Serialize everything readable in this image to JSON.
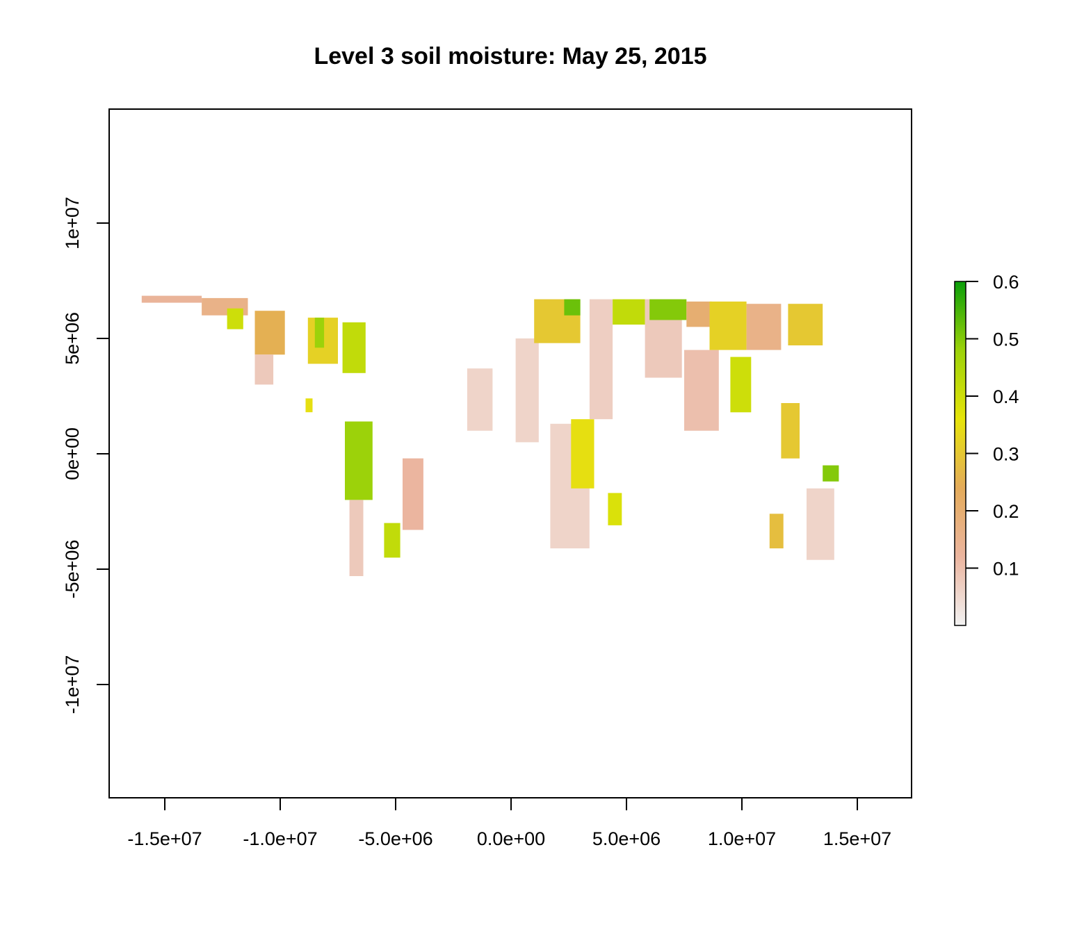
{
  "chart_data": {
    "type": "heatmap",
    "title": "Level 3 soil moisture: May 25, 2015",
    "xlabel": "",
    "ylabel": "",
    "xlim": [
      -17367530,
      17367530
    ],
    "ylim": [
      -14900000,
      14900000
    ],
    "x_ticks": [
      -15000000,
      -10000000,
      -5000000,
      0,
      5000000,
      10000000,
      15000000
    ],
    "x_tick_labels": [
      "-1.5e+07",
      "-1.0e+07",
      "-5.0e+06",
      "0.0e+00",
      "5.0e+06",
      "1.0e+07",
      "1.5e+07"
    ],
    "y_ticks": [
      10000000,
      5000000,
      0,
      -5000000,
      -10000000
    ],
    "y_tick_labels": [
      "1e+07",
      "5e+06",
      "0e+00",
      "-5e+06",
      "-1e+07"
    ],
    "grid": false,
    "legend": {
      "placement": "right",
      "range": [
        0.0,
        0.6
      ],
      "ticks": [
        0.1,
        0.2,
        0.3,
        0.4,
        0.5,
        0.6
      ],
      "tick_labels": [
        "0.1",
        "0.2",
        "0.3",
        "0.4",
        "0.5",
        "0.6"
      ],
      "colors": [
        "#f2f2f2",
        "#ebb59f",
        "#e4ab5a",
        "#e6e40a",
        "#9cd20a",
        "#0a9e0a"
      ]
    },
    "swaths": [
      {
        "x": [
          -16000000,
          -13400000
        ],
        "y": [
          6550000,
          6850000
        ],
        "v": 0.13
      },
      {
        "x": [
          -13400000,
          -11400000
        ],
        "y": [
          6000000,
          6750000
        ],
        "v": 0.16
      },
      {
        "x": [
          -12300000,
          -11600000
        ],
        "y": [
          5400000,
          6300000
        ],
        "v": 0.4
      },
      {
        "x": [
          -11100000,
          -9800000
        ],
        "y": [
          4300000,
          6200000
        ],
        "v": 0.25
      },
      {
        "x": [
          -11100000,
          -10300000
        ],
        "y": [
          3000000,
          4300000
        ],
        "v": 0.08
      },
      {
        "x": [
          -8800000,
          -7500000
        ],
        "y": [
          3900000,
          5900000
        ],
        "v": 0.32
      },
      {
        "x": [
          -8500000,
          -8100000
        ],
        "y": [
          4600000,
          5900000
        ],
        "v": 0.48
      },
      {
        "x": [
          -7300000,
          -6300000
        ],
        "y": [
          3500000,
          5700000
        ],
        "v": 0.42
      },
      {
        "x": [
          -8900000,
          -8600000
        ],
        "y": [
          1800000,
          2400000
        ],
        "v": 0.35
      },
      {
        "x": [
          -7200000,
          -6000000
        ],
        "y": [
          -2000000,
          1400000
        ],
        "v": 0.48
      },
      {
        "x": [
          -7000000,
          -6400000
        ],
        "y": [
          -5300000,
          -2000000
        ],
        "v": 0.08
      },
      {
        "x": [
          -4700000,
          -3800000
        ],
        "y": [
          -3300000,
          -200000
        ],
        "v": 0.12
      },
      {
        "x": [
          -5500000,
          -4800000
        ],
        "y": [
          -4500000,
          -3000000
        ],
        "v": 0.42
      },
      {
        "x": [
          -1900000,
          -800000
        ],
        "y": [
          1000000,
          3700000
        ],
        "v": 0.06
      },
      {
        "x": [
          200000,
          1200000
        ],
        "y": [
          500000,
          5000000
        ],
        "v": 0.06
      },
      {
        "x": [
          1000000,
          3000000
        ],
        "y": [
          4800000,
          6700000
        ],
        "v": 0.3
      },
      {
        "x": [
          2300000,
          3000000
        ],
        "y": [
          6000000,
          6700000
        ],
        "v": 0.52
      },
      {
        "x": [
          1700000,
          3400000
        ],
        "y": [
          -4100000,
          1300000
        ],
        "v": 0.06
      },
      {
        "x": [
          2600000,
          3600000
        ],
        "y": [
          -1500000,
          1500000
        ],
        "v": 0.35
      },
      {
        "x": [
          3400000,
          4400000
        ],
        "y": [
          1500000,
          6700000
        ],
        "v": 0.07
      },
      {
        "x": [
          4400000,
          5800000
        ],
        "y": [
          5600000,
          6700000
        ],
        "v": 0.42
      },
      {
        "x": [
          4200000,
          4800000
        ],
        "y": [
          -3100000,
          -1700000
        ],
        "v": 0.38
      },
      {
        "x": [
          5800000,
          7400000
        ],
        "y": [
          3300000,
          6700000
        ],
        "v": 0.08
      },
      {
        "x": [
          6000000,
          7600000
        ],
        "y": [
          5800000,
          6700000
        ],
        "v": 0.5
      },
      {
        "x": [
          7600000,
          8700000
        ],
        "y": [
          5500000,
          6600000
        ],
        "v": 0.2
      },
      {
        "x": [
          7500000,
          9000000
        ],
        "y": [
          1000000,
          4500000
        ],
        "v": 0.1
      },
      {
        "x": [
          8600000,
          10200000
        ],
        "y": [
          4500000,
          6600000
        ],
        "v": 0.32
      },
      {
        "x": [
          9500000,
          10400000
        ],
        "y": [
          1800000,
          4200000
        ],
        "v": 0.4
      },
      {
        "x": [
          10200000,
          11700000
        ],
        "y": [
          4500000,
          6500000
        ],
        "v": 0.16
      },
      {
        "x": [
          11700000,
          12500000
        ],
        "y": [
          -200000,
          2200000
        ],
        "v": 0.3
      },
      {
        "x": [
          12000000,
          13500000
        ],
        "y": [
          4700000,
          6500000
        ],
        "v": 0.3
      },
      {
        "x": [
          13500000,
          14200000
        ],
        "y": [
          -1200000,
          -500000
        ],
        "v": 0.5
      },
      {
        "x": [
          11200000,
          11800000
        ],
        "y": [
          -4100000,
          -2600000
        ],
        "v": 0.28
      },
      {
        "x": [
          12800000,
          14000000
        ],
        "y": [
          -4600000,
          -1500000
        ],
        "v": 0.06
      }
    ]
  }
}
